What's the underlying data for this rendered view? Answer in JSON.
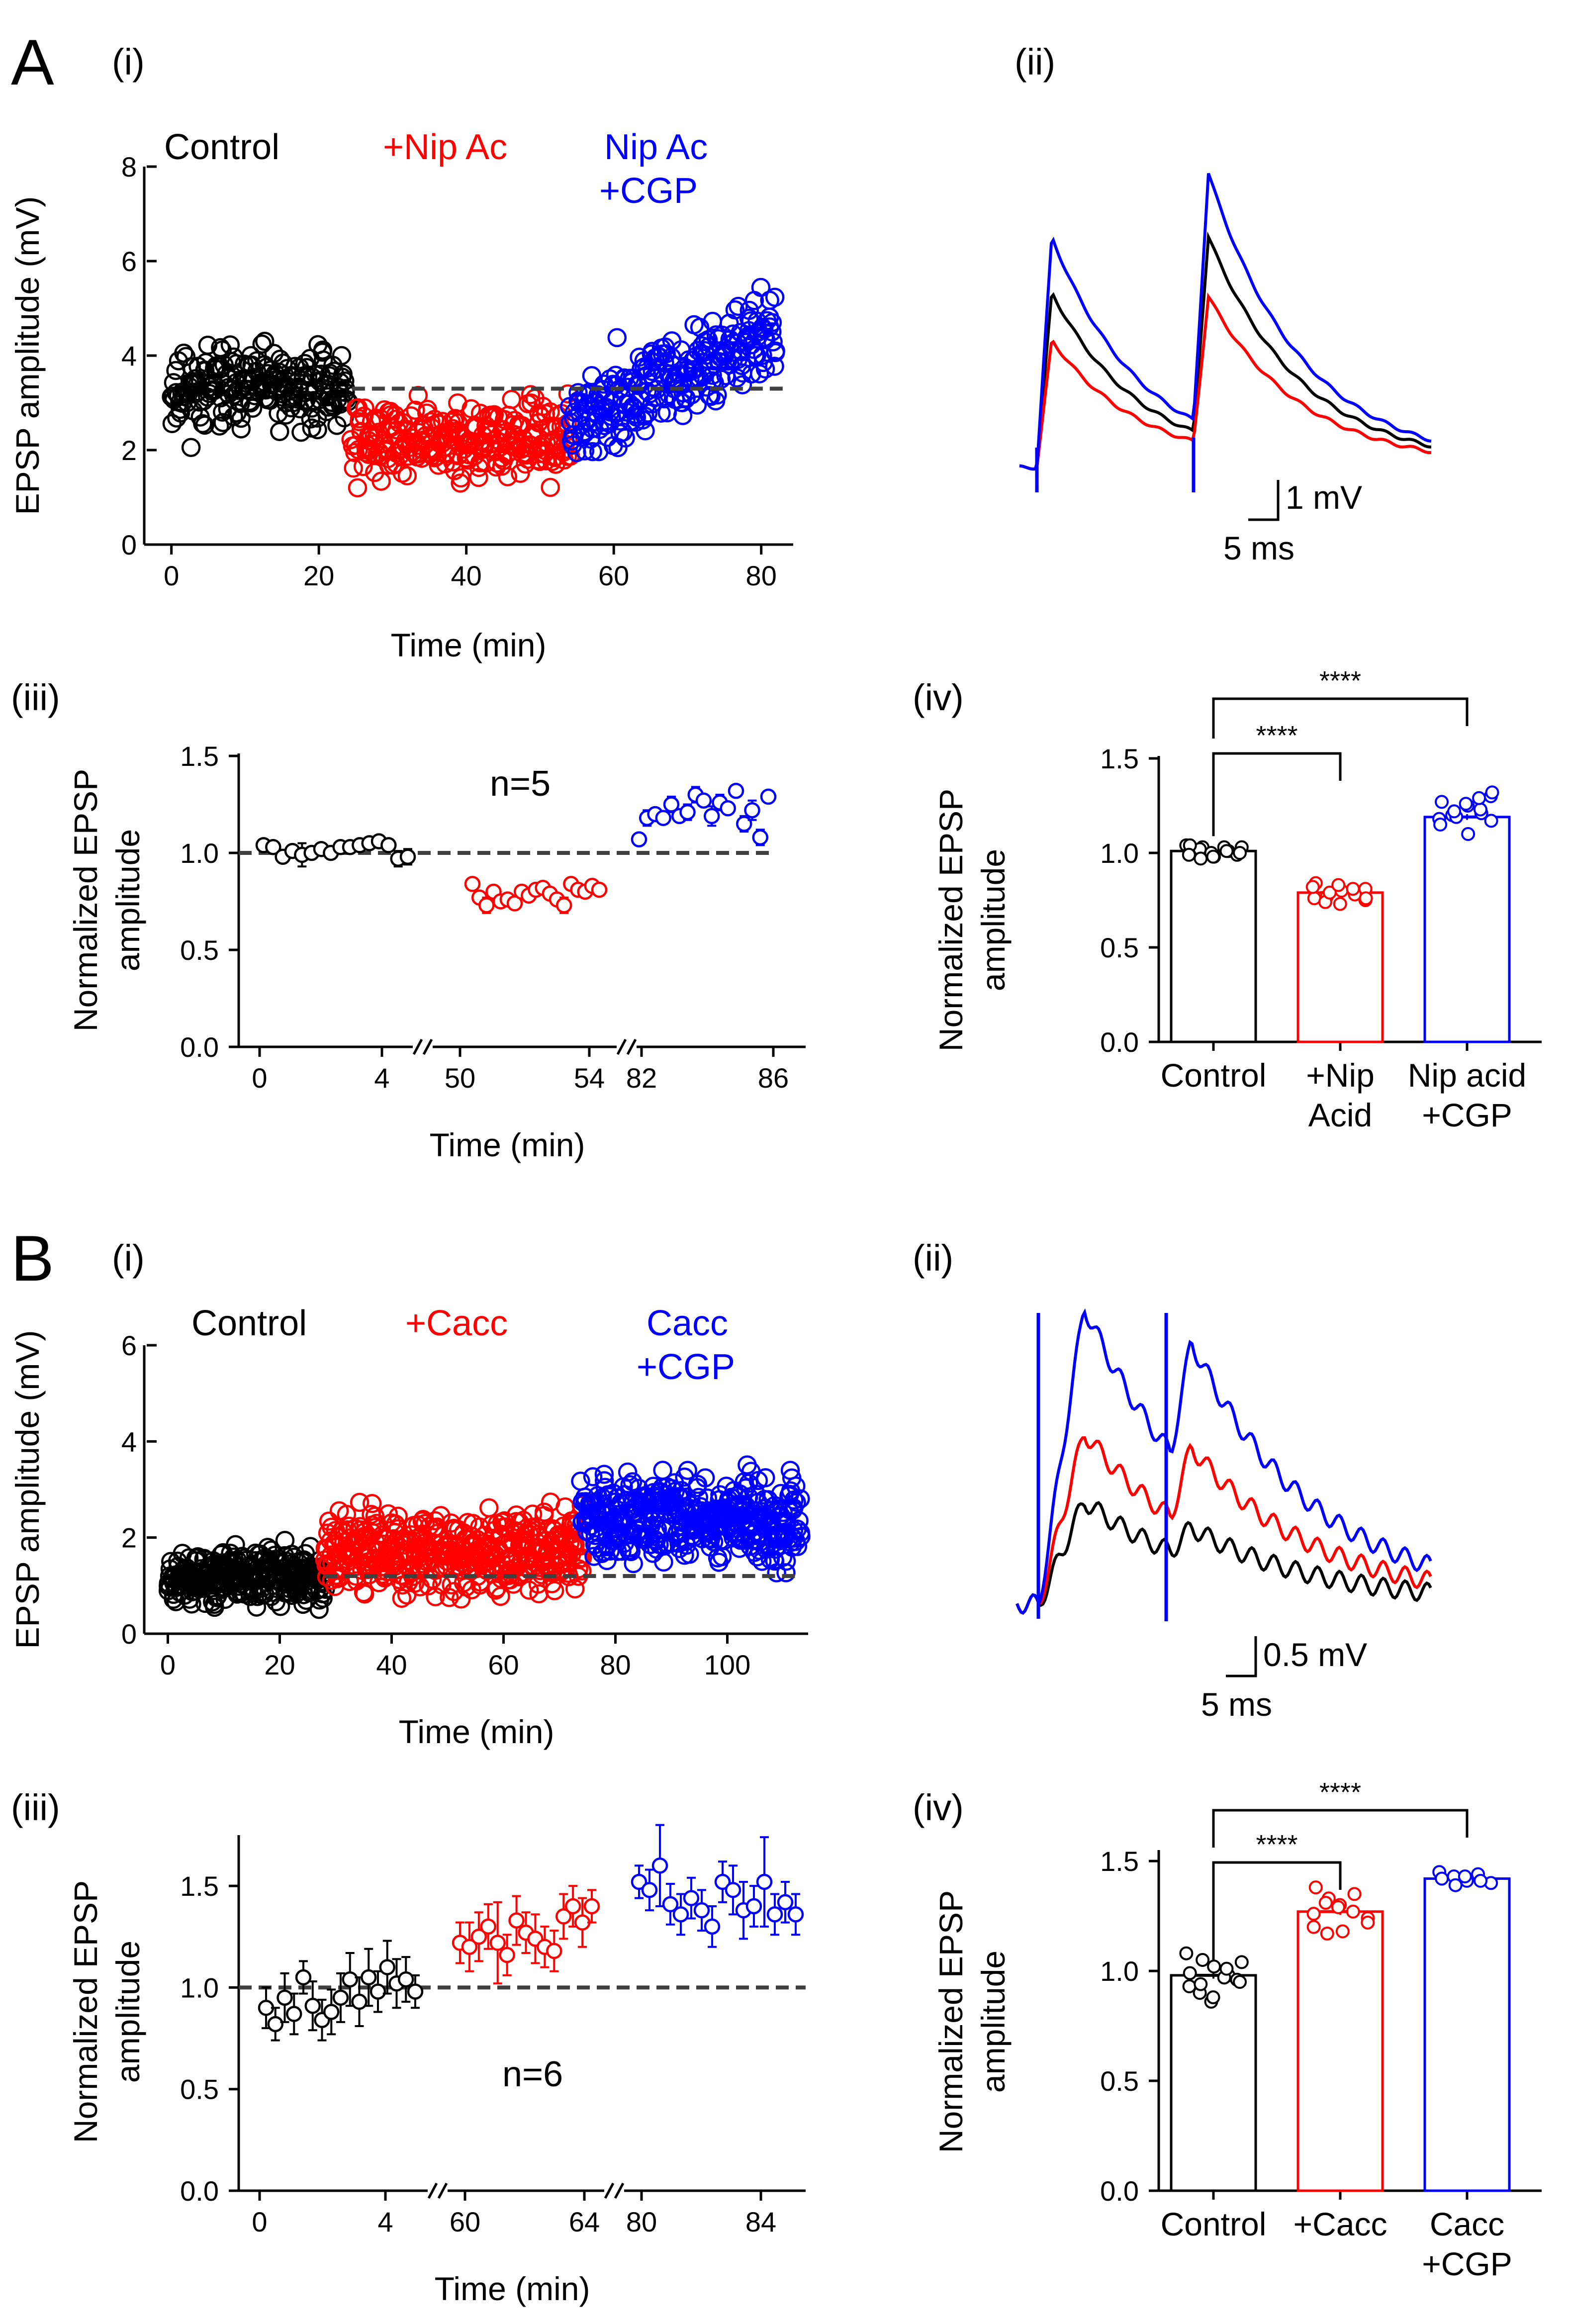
{
  "colors": {
    "control": "#000000",
    "drug": "#ff0000",
    "cgp": "#0000ff"
  },
  "panelA": {
    "label": "A",
    "i": {
      "sub": "(i)",
      "chart_data": {
        "type": "scatter",
        "xlabel": "Time (min)",
        "ylabel": "EPSP amplitude  (mV)",
        "xlim": [
          -2,
          84
        ],
        "ylim": [
          0,
          8
        ],
        "xticks": [
          0,
          20,
          40,
          60,
          80
        ],
        "yticks": [
          0,
          2,
          4,
          6,
          8
        ],
        "baseline": 3.3,
        "labels": {
          "control": "Control",
          "drug": "+Nip Ac",
          "cgp1": "Nip Ac",
          "cgp2": "+CGP"
        },
        "series": [
          {
            "name": "Control",
            "x_range": [
              0,
              24
            ],
            "mean": 3.3,
            "spread": 1.0,
            "n": 220
          },
          {
            "name": "+Nip Ac",
            "x_range": [
              24.5,
              54
            ],
            "mean": 2.2,
            "spread": 1.0,
            "n": 260
          },
          {
            "name": "Nip Ac +CGP",
            "x_range": [
              54,
              82
            ],
            "mean_start": 2.5,
            "mean_end": 4.6,
            "spread": 1.1,
            "n": 250
          }
        ]
      }
    },
    "ii": {
      "sub": "(ii)",
      "scale": {
        "v": "1 mV",
        "t": "5 ms"
      },
      "chart_data": {
        "type": "line",
        "description_traces": [
          "control",
          "drug",
          "cgp"
        ],
        "peaks_mV": {
          "control": [
            4.4,
            5.8
          ],
          "drug": [
            3.2,
            4.3
          ],
          "cgp": [
            5.8,
            7.4
          ]
        }
      }
    },
    "iii": {
      "sub": "(iii)",
      "n_label": "n=5",
      "chart_data": {
        "type": "scatter",
        "xlabel": "Time (min)",
        "ylabel1": "Normalized EPSP",
        "ylabel2": "amplitude",
        "ylim": [
          0,
          1.5
        ],
        "yticks": [
          "0.0",
          "0.5",
          "1.0",
          "1.5"
        ],
        "xticklabels": [
          "0",
          "4",
          "50",
          "54",
          "82",
          "86"
        ],
        "series": [
          {
            "name": "Control",
            "values": [
              1.04,
              1.03,
              0.98,
              1.01,
              0.99,
              1.0,
              1.02,
              1.0,
              1.03,
              1.03,
              1.04,
              1.05,
              1.06,
              1.04,
              0.97,
              0.98
            ],
            "err": [
              0.02,
              0.02,
              0.03,
              0.02,
              0.06,
              0.03,
              0.02,
              0.03,
              0.02,
              0.03,
              0.02,
              0.02,
              0.02,
              0.02,
              0.04,
              0.04
            ]
          },
          {
            "name": "+Nip Ac",
            "values": [
              0.84,
              0.77,
              0.73,
              0.8,
              0.75,
              0.76,
              0.74,
              0.8,
              0.78,
              0.81,
              0.82,
              0.79,
              0.76,
              0.73,
              0.84,
              0.81,
              0.8,
              0.83,
              0.81
            ],
            "err": [
              0.03,
              0.03,
              0.04,
              0.03,
              0.03,
              0.03,
              0.03,
              0.03,
              0.03,
              0.03,
              0.03,
              0.03,
              0.03,
              0.04,
              0.03,
              0.03,
              0.03,
              0.02,
              0.02
            ]
          },
          {
            "name": "Nip Ac +CGP",
            "values": [
              1.07,
              1.18,
              1.2,
              1.18,
              1.25,
              1.19,
              1.21,
              1.3,
              1.27,
              1.19,
              1.26,
              1.23,
              1.32,
              1.15,
              1.22,
              1.08,
              1.29
            ],
            "err": [
              0.03,
              0.04,
              0.03,
              0.03,
              0.04,
              0.03,
              0.04,
              0.04,
              0.03,
              0.05,
              0.04,
              0.03,
              0.03,
              0.04,
              0.05,
              0.04,
              0.03
            ]
          }
        ]
      }
    },
    "iv": {
      "sub": "(iv)",
      "sig1": "****",
      "sig2": "****",
      "chart_data": {
        "type": "bar",
        "ylabel1": "Normalized EPSP",
        "ylabel2": "amplitude",
        "ylim": [
          0,
          1.5
        ],
        "yticks": [
          "0.0",
          "0.5",
          "1.0",
          "1.5"
        ],
        "categories": [
          {
            "l1": "Control",
            "l2": ""
          },
          {
            "l1": "+Nip",
            "l2": "Acid"
          },
          {
            "l1": "Nip acid",
            "l2": "+CGP"
          }
        ],
        "values": [
          1.01,
          0.79,
          1.19
        ],
        "points": [
          [
            1.04,
            1.03,
            0.98,
            1.01,
            0.99,
            1.0,
            1.02,
            1.0,
            1.03,
            1.03,
            1.04,
            0.97,
            0.98,
            1.01,
            1.0,
            0.99
          ],
          [
            0.84,
            0.77,
            0.73,
            0.8,
            0.75,
            0.76,
            0.74,
            0.8,
            0.78,
            0.81,
            0.82,
            0.79,
            0.83,
            0.81,
            0.76
          ],
          [
            1.18,
            1.2,
            1.25,
            1.21,
            1.3,
            1.27,
            1.19,
            1.26,
            1.23,
            1.32,
            1.15,
            1.22,
            1.1,
            1.29,
            1.17
          ]
        ]
      }
    }
  },
  "panelB": {
    "label": "B",
    "i": {
      "sub": "(i)",
      "chart_data": {
        "type": "scatter",
        "xlabel": "Time (min)",
        "ylabel": "EPSP amplitude (mV)",
        "xlim": [
          -2,
          114
        ],
        "ylim": [
          0,
          6
        ],
        "xticks": [
          0,
          20,
          40,
          60,
          80,
          100
        ],
        "yticks": [
          0,
          2,
          4,
          6
        ],
        "baseline": 1.2,
        "labels": {
          "control": "Control",
          "drug": "+Cacc",
          "cgp1": "Cacc",
          "cgp2": "+CGP"
        },
        "series": [
          {
            "name": "Control",
            "x_range": [
              0,
              28
            ],
            "mean": 1.2,
            "spread": 0.7,
            "n": 280
          },
          {
            "name": "+Cacc",
            "x_range": [
              28,
              74
            ],
            "mean": 1.7,
            "spread": 1.0,
            "n": 420
          },
          {
            "name": "Cacc +CGP",
            "x_range": [
              74,
              113
            ],
            "mean": 2.4,
            "spread": 1.1,
            "n": 400
          }
        ]
      }
    },
    "ii": {
      "sub": "(ii)",
      "scale": {
        "v": "0.5 mV",
        "t": "5 ms"
      },
      "chart_data": {
        "type": "line",
        "description_traces": [
          "control",
          "drug",
          "cgp"
        ],
        "peaks_mV": {
          "control": [
            0.9,
            0.5
          ],
          "drug": [
            1.5,
            1.3
          ],
          "cgp": [
            2.6,
            2.1
          ]
        }
      }
    },
    "iii": {
      "sub": "(iii)",
      "n_label": "n=6",
      "chart_data": {
        "type": "scatter",
        "xlabel": "Time (min)",
        "ylabel1": "Normalized EPSP",
        "ylabel2": "amplitude",
        "ylim": [
          0,
          1.75
        ],
        "yticks": [
          "0.0",
          "0.5",
          "1.0",
          "1.5"
        ],
        "xticklabels": [
          "0",
          "4",
          "60",
          "64",
          "80",
          "84"
        ],
        "series": [
          {
            "name": "Control",
            "values": [
              0.9,
              0.82,
              0.95,
              0.87,
              1.05,
              0.91,
              0.84,
              0.88,
              0.95,
              1.04,
              0.93,
              1.05,
              0.98,
              1.1,
              1.02,
              1.04,
              0.98
            ],
            "err": [
              0.1,
              0.08,
              0.12,
              0.1,
              0.08,
              0.12,
              0.1,
              0.11,
              0.12,
              0.13,
              0.12,
              0.14,
              0.1,
              0.13,
              0.12,
              0.11,
              0.08
            ]
          },
          {
            "name": "+Cacc",
            "values": [
              1.22,
              1.2,
              1.25,
              1.3,
              1.22,
              1.16,
              1.33,
              1.27,
              1.24,
              1.2,
              1.18,
              1.35,
              1.4,
              1.32,
              1.4
            ],
            "err": [
              0.1,
              0.12,
              0.12,
              0.11,
              0.2,
              0.1,
              0.12,
              0.1,
              0.12,
              0.1,
              0.1,
              0.11,
              0.1,
              0.12,
              0.08
            ]
          },
          {
            "name": "Cacc +CGP",
            "values": [
              1.52,
              1.48,
              1.6,
              1.41,
              1.36,
              1.44,
              1.38,
              1.3,
              1.52,
              1.48,
              1.38,
              1.4,
              1.52,
              1.36,
              1.42,
              1.36
            ],
            "err": [
              0.08,
              0.1,
              0.2,
              0.1,
              0.1,
              0.1,
              0.1,
              0.1,
              0.1,
              0.12,
              0.14,
              0.1,
              0.22,
              0.1,
              0.1,
              0.1
            ]
          }
        ]
      }
    },
    "iv": {
      "sub": "(iv)",
      "sig1": "****",
      "sig2": "****",
      "chart_data": {
        "type": "bar",
        "ylabel1": "Normalized EPSP",
        "ylabel2": "amplitude",
        "ylim": [
          0,
          1.55
        ],
        "yticks": [
          "0.0",
          "0.5",
          "1.0",
          "1.5"
        ],
        "categories": [
          {
            "l1": "Control",
            "l2": ""
          },
          {
            "l1": "+Cacc",
            "l2": ""
          },
          {
            "l1": "Cacc",
            "l2": "+CGP"
          }
        ],
        "values": [
          0.98,
          1.27,
          1.42
        ],
        "points": [
          [
            1.08,
            1.05,
            1.02,
            0.98,
            0.96,
            0.93,
            0.9,
            0.86,
            0.97,
            1.04,
            0.99,
            0.94,
            0.88,
            1.01,
            0.95
          ],
          [
            1.38,
            1.33,
            1.3,
            1.27,
            1.24,
            1.2,
            1.17,
            1.29,
            1.35,
            1.22,
            1.26,
            1.31,
            1.18
          ],
          [
            1.45,
            1.43,
            1.41,
            1.44,
            1.4,
            1.42,
            1.39,
            1.43,
            1.41
          ]
        ]
      }
    }
  }
}
